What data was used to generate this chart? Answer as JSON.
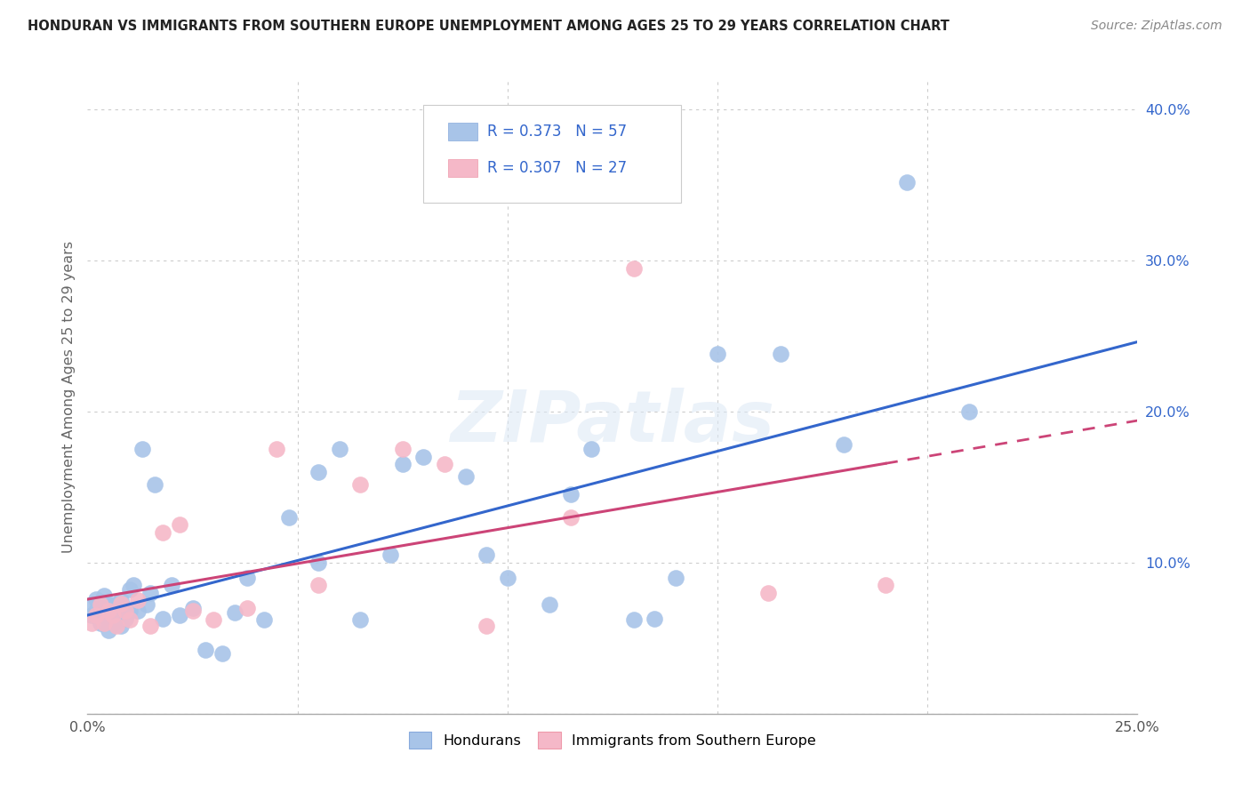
{
  "title": "HONDURAN VS IMMIGRANTS FROM SOUTHERN EUROPE UNEMPLOYMENT AMONG AGES 25 TO 29 YEARS CORRELATION CHART",
  "source": "Source: ZipAtlas.com",
  "ylabel": "Unemployment Among Ages 25 to 29 years",
  "xlim": [
    0.0,
    0.25
  ],
  "ylim": [
    0.0,
    0.42
  ],
  "xticks": [
    0.0,
    0.05,
    0.1,
    0.15,
    0.2,
    0.25
  ],
  "yticks": [
    0.0,
    0.1,
    0.2,
    0.3,
    0.4
  ],
  "xticklabels": [
    "0.0%",
    "",
    "",
    "",
    "",
    "25.0%"
  ],
  "yticklabels": [
    "",
    "10.0%",
    "20.0%",
    "30.0%",
    "40.0%"
  ],
  "blue_color": "#a8c4e8",
  "pink_color": "#f5b8c8",
  "blue_line_color": "#3366cc",
  "pink_line_color": "#cc4477",
  "watermark": "ZIPatlas",
  "legend_label_blue": "Hondurans",
  "legend_label_pink": "Immigrants from Southern Europe",
  "legend_R_blue": "0.373",
  "legend_N_blue": "57",
  "legend_R_pink": "0.307",
  "legend_N_pink": "27",
  "honduran_x": [
    0.001,
    0.001,
    0.002,
    0.002,
    0.003,
    0.003,
    0.004,
    0.004,
    0.005,
    0.005,
    0.006,
    0.006,
    0.007,
    0.007,
    0.008,
    0.008,
    0.009,
    0.009,
    0.01,
    0.01,
    0.011,
    0.012,
    0.013,
    0.014,
    0.015,
    0.016,
    0.018,
    0.02,
    0.022,
    0.025,
    0.028,
    0.032,
    0.035,
    0.038,
    0.042,
    0.048,
    0.055,
    0.06,
    0.065,
    0.072,
    0.08,
    0.09,
    0.1,
    0.11,
    0.12,
    0.13,
    0.14,
    0.15,
    0.165,
    0.18,
    0.195,
    0.21,
    0.055,
    0.075,
    0.095,
    0.115,
    0.135
  ],
  "honduran_y": [
    0.065,
    0.072,
    0.068,
    0.076,
    0.06,
    0.074,
    0.065,
    0.078,
    0.055,
    0.072,
    0.06,
    0.07,
    0.062,
    0.073,
    0.058,
    0.075,
    0.063,
    0.07,
    0.068,
    0.082,
    0.085,
    0.068,
    0.175,
    0.072,
    0.08,
    0.152,
    0.063,
    0.085,
    0.065,
    0.07,
    0.042,
    0.04,
    0.067,
    0.09,
    0.062,
    0.13,
    0.1,
    0.175,
    0.062,
    0.105,
    0.17,
    0.157,
    0.09,
    0.072,
    0.175,
    0.062,
    0.09,
    0.238,
    0.238,
    0.178,
    0.352,
    0.2,
    0.16,
    0.165,
    0.105,
    0.145,
    0.063
  ],
  "southern_eu_x": [
    0.001,
    0.002,
    0.003,
    0.004,
    0.005,
    0.006,
    0.007,
    0.008,
    0.009,
    0.01,
    0.012,
    0.015,
    0.018,
    0.022,
    0.025,
    0.03,
    0.038,
    0.045,
    0.055,
    0.065,
    0.075,
    0.085,
    0.095,
    0.115,
    0.13,
    0.162,
    0.19
  ],
  "southern_eu_y": [
    0.06,
    0.065,
    0.072,
    0.06,
    0.068,
    0.065,
    0.058,
    0.073,
    0.068,
    0.062,
    0.075,
    0.058,
    0.12,
    0.125,
    0.068,
    0.062,
    0.07,
    0.175,
    0.085,
    0.152,
    0.175,
    0.165,
    0.058,
    0.13,
    0.295,
    0.08,
    0.085
  ]
}
